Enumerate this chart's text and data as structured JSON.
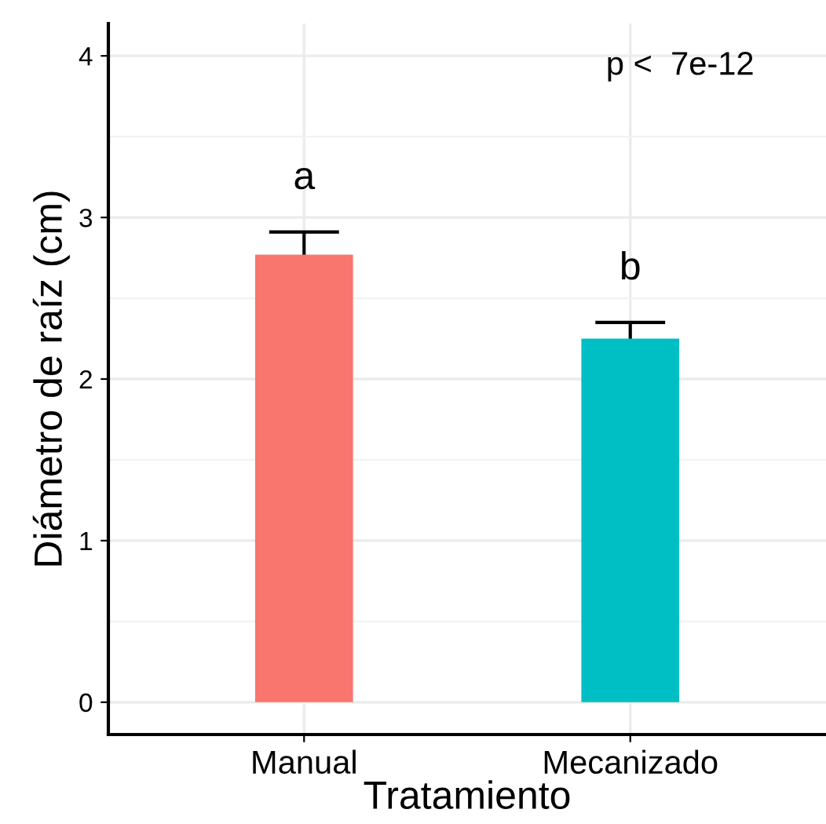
{
  "chart_data": {
    "type": "bar",
    "xlabel": "Tratamiento",
    "ylabel": "Diámetro de raíz (cm)",
    "categories": [
      "Manual",
      "Mecanizado"
    ],
    "values": [
      2.77,
      2.25
    ],
    "colors": [
      "#f8766d",
      "#00bfc4"
    ],
    "errors": [
      0.14,
      0.1
    ],
    "ylim": [
      -0.2,
      4.2
    ],
    "yticks": [
      0,
      {
        "value": 0.5,
        "label": null
      },
      1,
      {
        "value": 1.5,
        "label": null
      },
      2,
      {
        "value": 2.5,
        "label": null
      },
      3,
      {
        "value": 3.5,
        "label": null
      },
      4
    ],
    "grid": true,
    "annotations": [
      "a",
      "b",
      "p <  7e-12"
    ]
  }
}
